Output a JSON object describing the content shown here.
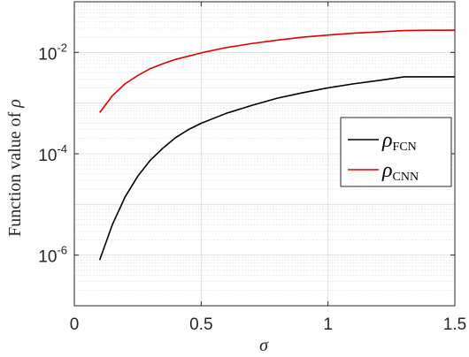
{
  "chart_data": {
    "type": "line",
    "xlabel": "σ",
    "ylabel_prefix": "Function value of ",
    "ylabel_symbol": "ρ",
    "xlim": [
      0,
      1.5
    ],
    "ylim": [
      1e-07,
      0.1
    ],
    "yscale": "log",
    "grid": true,
    "minor_grid": true,
    "x_ticks": [
      {
        "value": 0,
        "label": "0"
      },
      {
        "value": 0.5,
        "label": "0.5"
      },
      {
        "value": 1,
        "label": "1"
      },
      {
        "value": 1.5,
        "label": "1.5"
      }
    ],
    "y_ticks": [
      {
        "value": 1e-06,
        "base": "10",
        "exp": "-6"
      },
      {
        "value": 0.0001,
        "base": "10",
        "exp": "-4"
      },
      {
        "value": 0.01,
        "base": "10",
        "exp": "-2"
      }
    ],
    "legend_position": "right",
    "series": [
      {
        "name_symbol": "ρ",
        "name_sub": "FCN",
        "color": "#000000",
        "x": [
          0.1,
          0.15,
          0.2,
          0.25,
          0.3,
          0.35,
          0.4,
          0.45,
          0.5,
          0.6,
          0.7,
          0.8,
          0.9,
          1.0,
          1.1,
          1.2,
          1.3,
          1.4,
          1.5
        ],
        "y": [
          8e-07,
          4e-06,
          1.4e-05,
          3.6e-05,
          7.5e-05,
          0.00013,
          0.00021,
          0.0003,
          0.0004,
          0.00063,
          0.0009,
          0.00125,
          0.0016,
          0.002,
          0.0024,
          0.0028,
          0.0033,
          0.0033,
          0.0033
        ]
      },
      {
        "name_symbol": "ρ",
        "name_sub": "CNN",
        "color": "#e00000",
        "x": [
          0.1,
          0.15,
          0.2,
          0.25,
          0.3,
          0.35,
          0.4,
          0.5,
          0.6,
          0.7,
          0.8,
          0.9,
          1.0,
          1.1,
          1.2,
          1.3,
          1.4,
          1.5
        ],
        "y": [
          0.00065,
          0.0014,
          0.0024,
          0.0035,
          0.0048,
          0.006,
          0.0073,
          0.0098,
          0.0125,
          0.015,
          0.0175,
          0.02,
          0.022,
          0.024,
          0.0255,
          0.027,
          0.0275,
          0.0275
        ]
      }
    ]
  }
}
